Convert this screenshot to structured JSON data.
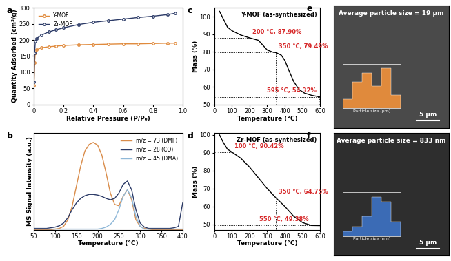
{
  "chart_data": [
    {
      "type": "line",
      "panel": "a",
      "xlabel": "Relative Pressure (P/P₀)",
      "ylabel": "Quantity Adsorbed (cm³/g)",
      "x": [
        0.001,
        0.005,
        0.01,
        0.02,
        0.05,
        0.1,
        0.15,
        0.2,
        0.3,
        0.4,
        0.5,
        0.6,
        0.7,
        0.8,
        0.9,
        0.95
      ],
      "series": [
        {
          "name": "Y-MOF",
          "color": "#E08A3C",
          "marker": "o",
          "values": [
            60,
            130,
            160,
            170,
            176,
            179,
            181,
            183,
            185,
            186,
            187,
            188,
            188,
            189,
            190,
            190
          ]
        },
        {
          "name": "Zr-MOF",
          "color": "#2B3A67",
          "marker": "o",
          "values": [
            70,
            160,
            195,
            205,
            215,
            225,
            232,
            238,
            248,
            255,
            260,
            265,
            270,
            274,
            279,
            283
          ]
        }
      ],
      "xlim": [
        0,
        1.0
      ],
      "xticks": [
        0,
        0.2,
        0.4,
        0.6,
        0.8,
        1.0
      ],
      "ylim": [
        0,
        300
      ],
      "yticks": [
        0,
        50,
        100,
        150,
        200,
        250,
        300
      ],
      "legend": "upper left"
    },
    {
      "type": "line",
      "panel": "b",
      "xlabel": "Temperature (°C)",
      "ylabel": "MS Signal Intensity (a.u.)",
      "x": [
        50,
        60,
        70,
        80,
        90,
        100,
        110,
        120,
        130,
        140,
        150,
        160,
        170,
        180,
        190,
        200,
        210,
        220,
        230,
        240,
        250,
        260,
        270,
        280,
        290,
        300,
        310,
        320,
        330,
        340,
        350,
        360,
        370,
        380,
        390,
        400
      ],
      "series": [
        {
          "name": "m/z = 73 (DMF)",
          "color": "#D98C4A",
          "values": [
            0,
            0,
            0,
            0,
            0,
            0.01,
            0.02,
            0.05,
            0.15,
            0.35,
            0.65,
            0.95,
            1.18,
            1.28,
            1.31,
            1.27,
            1.12,
            0.85,
            0.55,
            0.38,
            0.36,
            0.5,
            0.6,
            0.45,
            0.15,
            0.05,
            0.02,
            0.01,
            0,
            0,
            0,
            0,
            0,
            0,
            0,
            0
          ]
        },
        {
          "name": "m/z = 28 (CO)",
          "color": "#2B3A67",
          "values": [
            0.02,
            0.02,
            0.02,
            0.02,
            0.03,
            0.04,
            0.06,
            0.1,
            0.18,
            0.3,
            0.4,
            0.47,
            0.51,
            0.53,
            0.53,
            0.52,
            0.5,
            0.47,
            0.45,
            0.47,
            0.55,
            0.68,
            0.73,
            0.6,
            0.3,
            0.1,
            0.04,
            0.02,
            0.02,
            0.02,
            0.02,
            0.02,
            0.02,
            0.03,
            0.05,
            0.4
          ]
        },
        {
          "name": "m/z = 45 (DMA)",
          "color": "#8FB8D8",
          "values": [
            0.01,
            0.01,
            0.01,
            0.01,
            0.01,
            0.01,
            0.01,
            0.01,
            0.01,
            0.01,
            0.01,
            0.01,
            0.01,
            0.01,
            0.01,
            0.01,
            0.02,
            0.04,
            0.08,
            0.15,
            0.3,
            0.5,
            0.6,
            0.48,
            0.2,
            0.05,
            0.01,
            0.01,
            0.01,
            0.01,
            0.01,
            0.01,
            0.01,
            0.01,
            0.01,
            0.01
          ]
        }
      ],
      "xlim": [
        50,
        400
      ],
      "xticks": [
        50,
        100,
        150,
        200,
        250,
        300,
        350,
        400
      ],
      "ylim": [
        0,
        1.45
      ],
      "tick_labels": "x",
      "legend": "upper right"
    },
    {
      "type": "line",
      "panel": "c",
      "title": "Y-MOF (as-synthesized)",
      "xlabel": "Temperature (°C)",
      "ylabel": "Mass (%)",
      "x": [
        30,
        50,
        75,
        100,
        150,
        200,
        250,
        300,
        330,
        350,
        380,
        400,
        420,
        450,
        480,
        510,
        550,
        595,
        600
      ],
      "values": [
        103,
        99,
        94,
        92,
        89.5,
        87.9,
        86.5,
        81,
        79.8,
        79.49,
        78,
        75,
        70,
        63,
        58.5,
        56.5,
        55.2,
        54.32,
        54.1
      ],
      "color": "#000000",
      "xlim": [
        0,
        600
      ],
      "xticks": [
        0,
        100,
        200,
        300,
        400,
        500,
        600
      ],
      "ylim": [
        50,
        105
      ],
      "yticks": [
        50,
        60,
        70,
        80,
        90,
        100
      ],
      "annotations": [
        {
          "text": "200 °C, 87.90%",
          "x": 200,
          "y": 87.9
        },
        {
          "text": "350 °C, 79.49%",
          "x": 350,
          "y": 79.49
        },
        {
          "text": "595 °C, 54.32%",
          "x": 595,
          "y": 54.32
        }
      ]
    },
    {
      "type": "line",
      "panel": "d",
      "title": "Zr-MOF (as-synthesized)",
      "xlabel": "Temperature (°C)",
      "ylabel": "Mass (%)",
      "x": [
        30,
        50,
        75,
        100,
        150,
        200,
        250,
        300,
        350,
        400,
        450,
        500,
        550,
        600
      ],
      "values": [
        100,
        96,
        92,
        90.42,
        87,
        82,
        76,
        70,
        64.75,
        60,
        54.5,
        51,
        49.38,
        49.3
      ],
      "color": "#000000",
      "xlim": [
        0,
        600
      ],
      "xticks": [
        0,
        100,
        200,
        300,
        400,
        500,
        600
      ],
      "ylim": [
        47,
        101
      ],
      "yticks": [
        50,
        60,
        70,
        80,
        90,
        100
      ],
      "annotations": [
        {
          "text": "100 °C, 90.42%",
          "x": 100,
          "y": 90.42
        },
        {
          "text": "350 °C, 64.75%",
          "x": 350,
          "y": 64.75
        },
        {
          "text": "550 °C, 49.38%",
          "x": 550,
          "y": 49.38
        }
      ]
    },
    {
      "type": "histogram",
      "panel": "e",
      "title": "Average particle size = 19 µm",
      "xlabel": "Particle size (µm)",
      "bins": [
        5,
        10,
        15,
        20,
        25,
        30,
        35
      ],
      "counts": [
        2,
        6,
        8,
        5,
        9,
        3
      ],
      "color": "#E08A3C",
      "xlim": [
        5,
        35
      ],
      "ylim": [
        0,
        10
      ],
      "tick_labels": false,
      "annotations": [
        "5 µm"
      ]
    },
    {
      "type": "histogram",
      "panel": "f",
      "title": "Average particle size = 833 nm",
      "xlabel": "Particle size (nm)",
      "bins": [
        500,
        600,
        700,
        800,
        900,
        1000,
        1100
      ],
      "counts": [
        1,
        2,
        4,
        8,
        7,
        3
      ],
      "color": "#3B6BB5",
      "xlim": [
        500,
        1100
      ],
      "ylim": [
        0,
        9
      ],
      "tick_labels": false,
      "annotations": [
        "5 µm"
      ]
    }
  ]
}
